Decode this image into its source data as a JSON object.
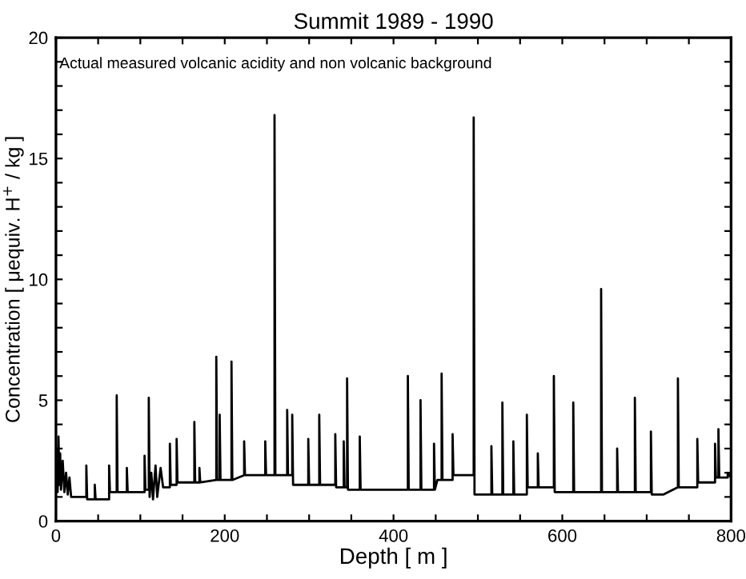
{
  "chart_data": {
    "type": "line",
    "title": "Summit 1989 - 1990",
    "xlabel": "Depth [ m ]",
    "ylabel": "Concentration [ μequiv. H$^{+}$ / kg ]",
    "annotations": [
      "Actual measured volcanic acidity and non volcanic background"
    ],
    "xlim": [
      0,
      800
    ],
    "ylim": [
      0,
      20
    ],
    "xticks": [
      0,
      {
        "value": 50,
        "label": null
      },
      {
        "value": 100,
        "label": null
      },
      {
        "value": 150,
        "label": null
      },
      200,
      {
        "value": 250,
        "label": null
      },
      {
        "value": 300,
        "label": null
      },
      {
        "value": 350,
        "label": null
      },
      400,
      {
        "value": 450,
        "label": null
      },
      {
        "value": 500,
        "label": null
      },
      {
        "value": 550,
        "label": null
      },
      600,
      {
        "value": 650,
        "label": null
      },
      {
        "value": 700,
        "label": null
      },
      {
        "value": 750,
        "label": null
      },
      800
    ],
    "yticks": [
      0,
      {
        "value": 1,
        "label": null
      },
      {
        "value": 2,
        "label": null
      },
      {
        "value": 3,
        "label": null
      },
      {
        "value": 4,
        "label": null
      },
      5,
      {
        "value": 6,
        "label": null
      },
      {
        "value": 7,
        "label": null
      },
      {
        "value": 8,
        "label": null
      },
      {
        "value": 9,
        "label": null
      },
      10,
      {
        "value": 11,
        "label": null
      },
      {
        "value": 12,
        "label": null
      },
      {
        "value": 13,
        "label": null
      },
      {
        "value": 14,
        "label": null
      },
      15,
      {
        "value": 16,
        "label": null
      },
      {
        "value": 17,
        "label": null
      },
      {
        "value": 18,
        "label": null
      },
      {
        "value": 19,
        "label": null
      },
      20
    ],
    "grid": false,
    "marker": "none",
    "line_style": "solid",
    "series": [
      {
        "color": "#000000",
        "x": [
          0,
          1,
          2,
          3,
          4,
          5,
          6,
          8,
          10,
          12,
          14,
          16,
          18,
          22,
          36,
          36,
          37,
          46,
          46,
          47,
          62,
          63,
          63,
          64,
          72,
          72,
          73,
          84,
          84,
          85,
          100,
          105,
          105,
          106,
          110,
          110,
          111,
          113,
          115,
          118,
          120,
          124,
          127,
          135,
          135,
          136,
          143,
          143,
          144,
          164,
          164,
          165,
          170,
          170,
          171,
          190,
          190,
          191,
          194,
          194,
          195,
          208,
          208,
          209,
          223,
          223,
          224,
          248,
          248,
          249,
          259,
          259,
          260,
          274,
          274,
          275,
          280,
          280,
          281,
          299,
          299,
          300,
          312,
          312,
          313,
          331,
          331,
          332,
          341,
          341,
          342,
          345,
          345,
          346,
          360,
          360,
          361,
          404,
          417,
          417,
          418,
          432,
          432,
          433,
          448,
          448,
          449,
          452,
          457,
          457,
          458,
          470,
          470,
          471,
          478,
          495,
          495,
          496,
          516,
          516,
          517,
          529,
          529,
          530,
          542,
          542,
          543,
          558,
          558,
          559,
          571,
          571,
          572,
          590,
          590,
          591,
          613,
          613,
          614,
          646,
          646,
          647,
          665,
          665,
          666,
          686,
          686,
          687,
          705,
          705,
          706,
          720,
          737,
          737,
          738,
          760,
          760,
          761,
          781,
          781,
          782,
          785,
          785,
          786,
          796,
          796,
          800
        ],
        "values": [
          1.8,
          3.0,
          1.2,
          3.5,
          1.5,
          2.8,
          1.3,
          2.5,
          1.2,
          2.0,
          1.1,
          1.8,
          1.0,
          1.0,
          1.0,
          2.3,
          0.9,
          0.9,
          1.5,
          0.9,
          0.9,
          0.9,
          2.3,
          1.2,
          1.2,
          5.2,
          1.2,
          1.2,
          2.2,
          1.2,
          1.2,
          1.2,
          2.7,
          1.3,
          1.3,
          5.1,
          1.0,
          2.0,
          0.9,
          2.3,
          1.0,
          2.2,
          1.4,
          1.4,
          3.2,
          1.5,
          1.5,
          3.4,
          1.6,
          1.6,
          4.1,
          1.6,
          1.6,
          2.2,
          1.6,
          1.7,
          6.8,
          1.7,
          1.7,
          4.4,
          1.7,
          1.7,
          6.6,
          1.7,
          1.9,
          3.3,
          1.9,
          1.9,
          3.3,
          1.9,
          1.9,
          16.8,
          1.9,
          1.9,
          4.6,
          1.9,
          1.9,
          4.4,
          1.5,
          1.5,
          3.4,
          1.5,
          1.5,
          4.4,
          1.5,
          1.5,
          3.6,
          1.4,
          1.4,
          3.3,
          1.4,
          1.4,
          5.9,
          1.3,
          1.3,
          3.5,
          1.3,
          1.3,
          1.3,
          6.0,
          1.3,
          1.3,
          5.0,
          1.3,
          1.3,
          3.2,
          1.3,
          1.7,
          1.7,
          6.1,
          1.7,
          1.7,
          3.6,
          1.9,
          1.9,
          1.9,
          16.7,
          1.1,
          1.1,
          3.1,
          1.1,
          1.1,
          4.9,
          1.1,
          1.1,
          3.3,
          1.1,
          1.1,
          4.4,
          1.4,
          1.4,
          2.8,
          1.4,
          1.4,
          6.0,
          1.2,
          1.2,
          4.9,
          1.2,
          1.2,
          9.6,
          1.2,
          1.2,
          3.0,
          1.2,
          1.2,
          5.1,
          1.2,
          1.2,
          3.7,
          1.1,
          1.1,
          1.4,
          5.9,
          1.4,
          1.4,
          3.4,
          1.6,
          1.6,
          3.2,
          1.8,
          1.8,
          3.8,
          1.8,
          1.8,
          2.0,
          1.8
        ]
      }
    ]
  }
}
